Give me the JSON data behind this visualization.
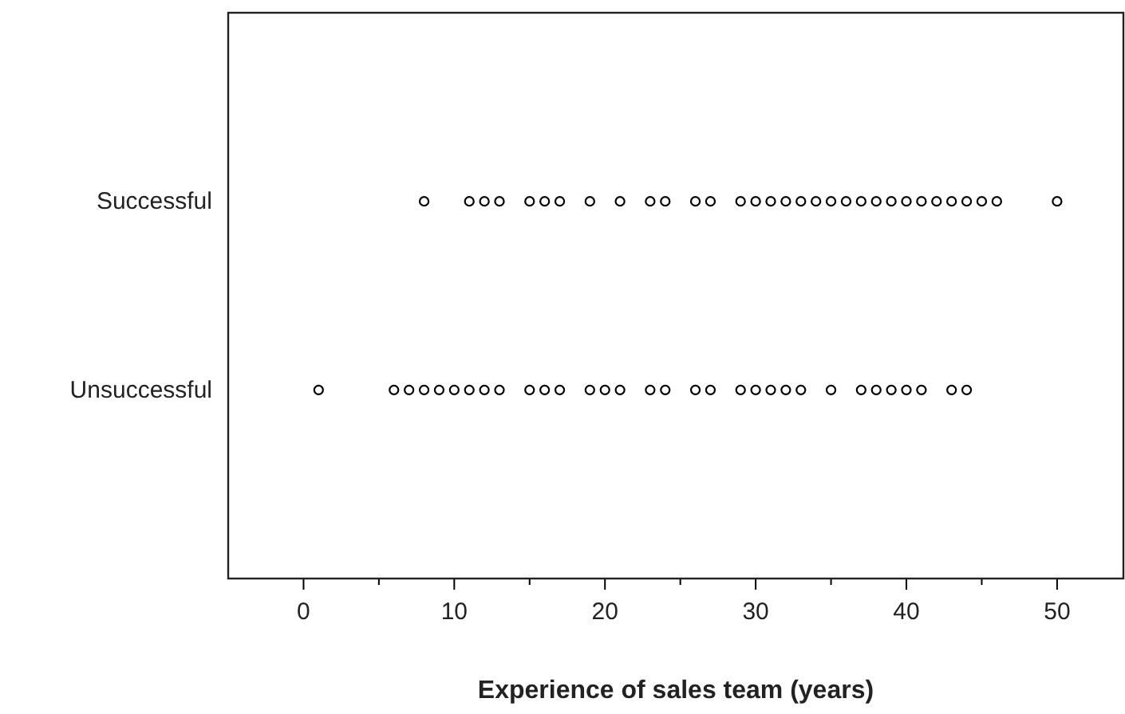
{
  "chart_data": {
    "type": "scatter",
    "xlabel": "Experience of sales team (years)",
    "categories": [
      "Successful",
      "Unsuccessful"
    ],
    "orientation": "horizontal",
    "marker": "circle",
    "grid": false,
    "xlim": [
      -5,
      54.4
    ],
    "xticks": [
      0,
      {
        "value": 5,
        "label": null
      },
      10,
      {
        "value": 15,
        "label": null
      },
      20,
      {
        "value": 25,
        "label": null
      },
      30,
      {
        "value": 35,
        "label": null
      },
      40,
      {
        "value": 45,
        "label": null
      },
      50
    ],
    "series": [
      {
        "color": "#000000",
        "values": [
          8,
          1
        ]
      },
      {
        "color": "#000000",
        "values": [
          11,
          6
        ]
      },
      {
        "color": "#000000",
        "values": [
          12,
          7
        ]
      },
      {
        "color": "#000000",
        "values": [
          13,
          8
        ]
      },
      {
        "color": "#000000",
        "values": [
          15,
          9
        ]
      },
      {
        "color": "#000000",
        "values": [
          16,
          10
        ]
      },
      {
        "color": "#000000",
        "values": [
          17,
          11
        ]
      },
      {
        "color": "#000000",
        "values": [
          19,
          12
        ]
      },
      {
        "color": "#000000",
        "values": [
          21,
          13
        ]
      },
      {
        "color": "#000000",
        "values": [
          23,
          15
        ]
      },
      {
        "color": "#000000",
        "values": [
          24,
          16
        ]
      },
      {
        "color": "#000000",
        "values": [
          26,
          17
        ]
      },
      {
        "color": "#000000",
        "values": [
          27,
          19
        ]
      },
      {
        "color": "#000000",
        "values": [
          29,
          20
        ]
      },
      {
        "color": "#000000",
        "values": [
          30,
          21
        ]
      },
      {
        "color": "#000000",
        "values": [
          31,
          23
        ]
      },
      {
        "color": "#000000",
        "values": [
          32,
          24
        ]
      },
      {
        "color": "#000000",
        "values": [
          33,
          26
        ]
      },
      {
        "color": "#000000",
        "values": [
          34,
          27
        ]
      },
      {
        "color": "#000000",
        "values": [
          35,
          29
        ]
      },
      {
        "color": "#000000",
        "values": [
          36,
          30
        ]
      },
      {
        "color": "#000000",
        "values": [
          37,
          31
        ]
      },
      {
        "color": "#000000",
        "values": [
          38,
          32
        ]
      },
      {
        "color": "#000000",
        "values": [
          39,
          33
        ]
      },
      {
        "color": "#000000",
        "values": [
          40,
          35
        ]
      },
      {
        "color": "#000000",
        "values": [
          41,
          37
        ]
      },
      {
        "color": "#000000",
        "values": [
          42,
          38
        ]
      },
      {
        "color": "#000000",
        "values": [
          43,
          39
        ]
      },
      {
        "color": "#000000",
        "values": [
          44,
          40
        ]
      },
      {
        "color": "#000000",
        "values": [
          45,
          41
        ]
      },
      {
        "color": "#000000",
        "values": [
          46,
          43
        ]
      },
      {
        "color": "#000000",
        "values": [
          50,
          44
        ]
      }
    ]
  }
}
